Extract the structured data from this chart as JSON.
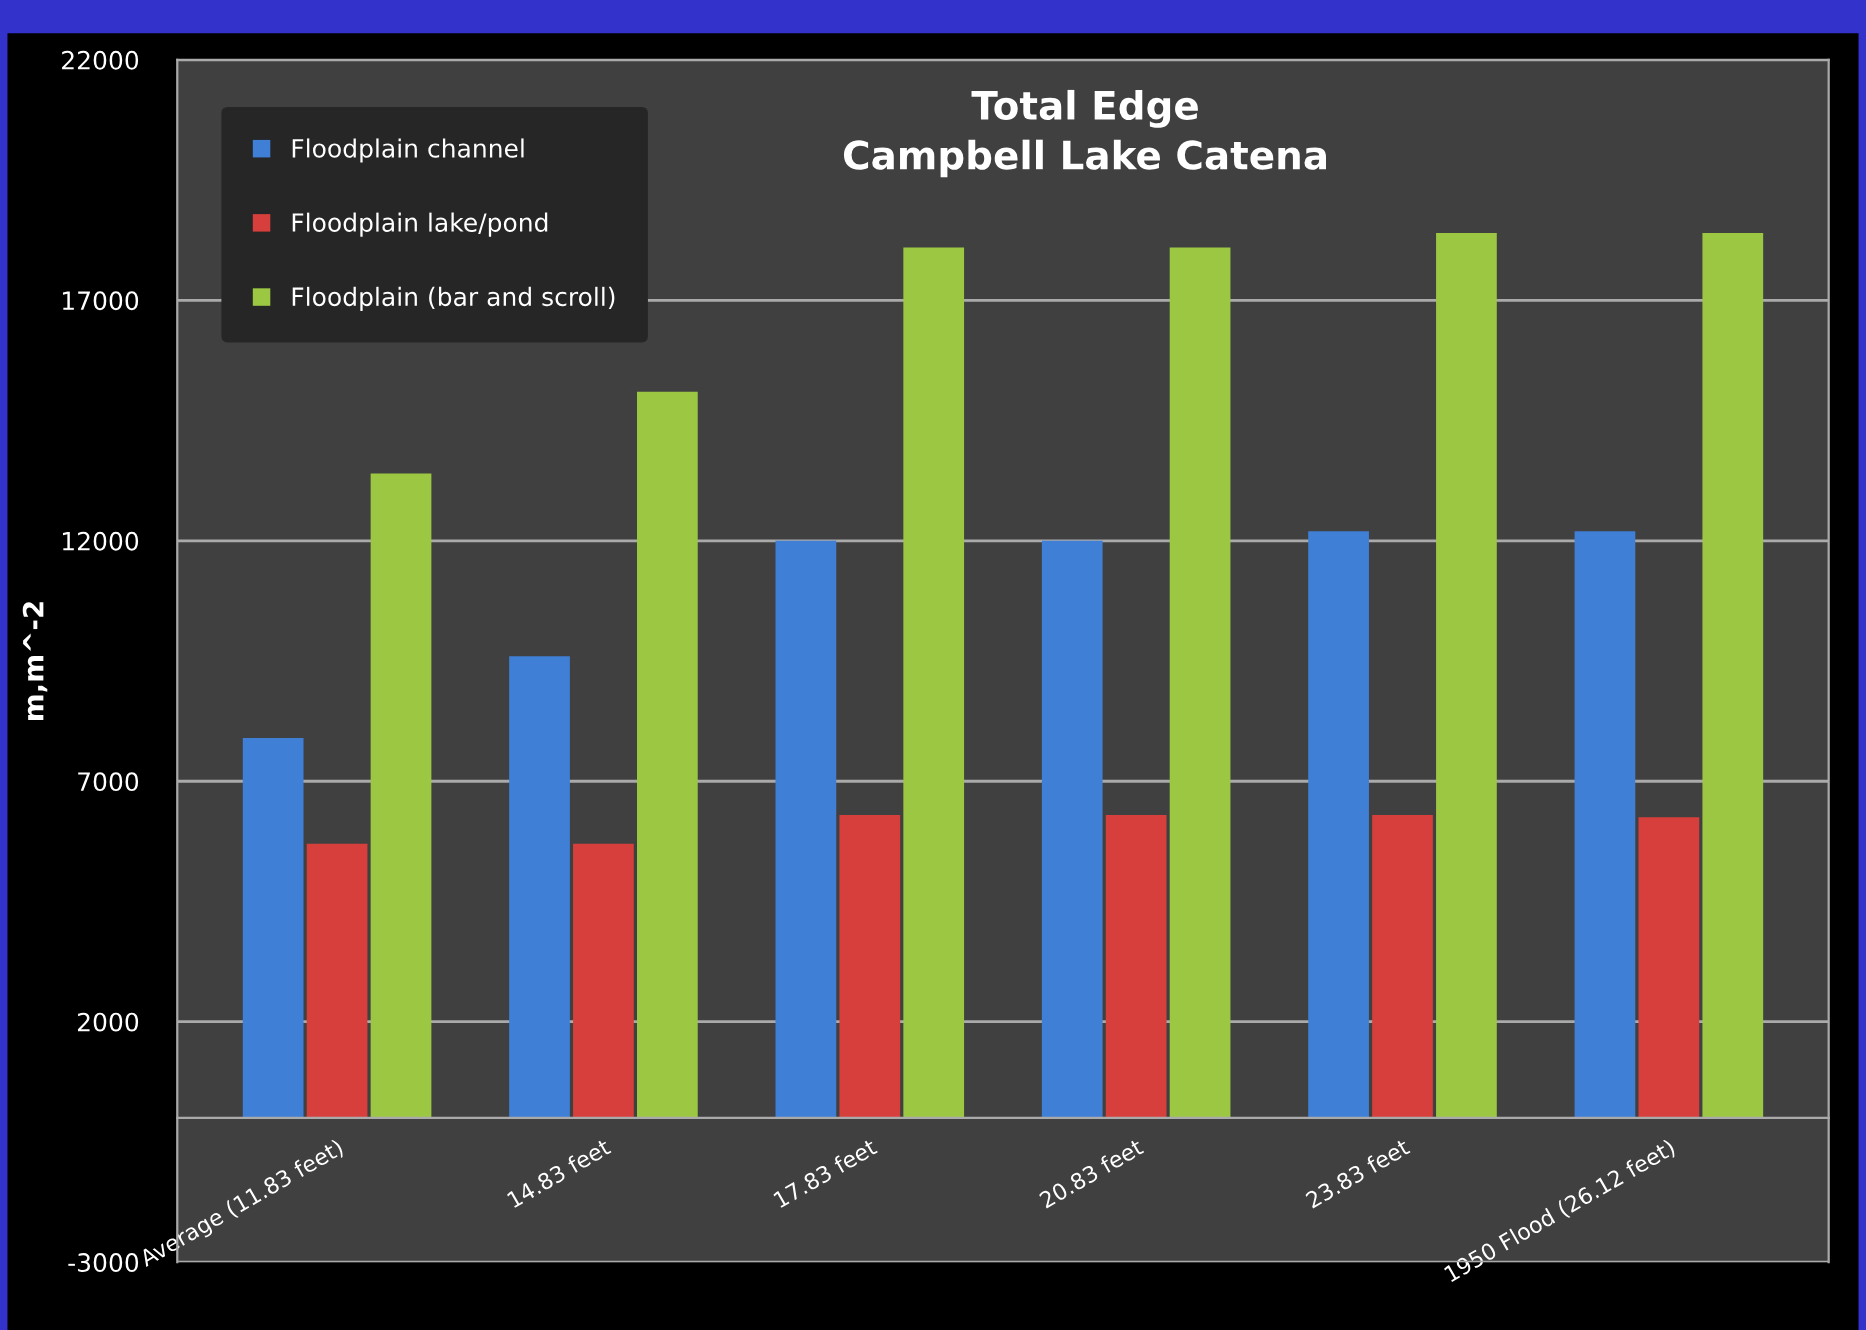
{
  "chart_data": {
    "type": "bar",
    "title": "Total Edge\nCampbell Lake Catena",
    "ylabel": "m,m^-2",
    "categories": [
      "Average (11.83 feet)",
      "14.83 feet",
      "17.83 feet",
      "20.83 feet",
      "23.83 feet",
      "1950 Flood (26.12 feet)"
    ],
    "series": [
      {
        "name": "Floodplain channel",
        "color": "#3f7fd6",
        "values": [
          7900,
          9600,
          12000,
          12000,
          12200,
          12200
        ]
      },
      {
        "name": "Floodplain lake/pond",
        "color": "#d63f3c",
        "values": [
          5700,
          5700,
          6300,
          6300,
          6300,
          6250
        ]
      },
      {
        "name": "Floodplain (bar and scroll)",
        "color": "#9bc742",
        "values": [
          13400,
          15100,
          18100,
          18100,
          18400,
          18400
        ]
      }
    ],
    "ylim": [
      -3000,
      22000
    ],
    "yticks": [
      -3000,
      2000,
      7000,
      12000,
      17000,
      22000
    ],
    "grid": "y",
    "legend": "top left"
  }
}
